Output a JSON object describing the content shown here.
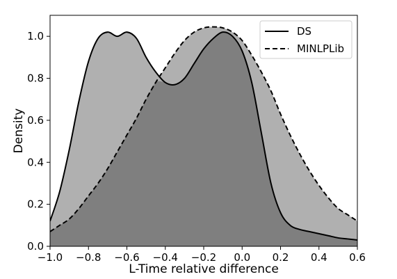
{
  "chart_data": {
    "type": "area",
    "xlabel": "L-Time relative difference",
    "ylabel": "Density",
    "xlim": [
      -1.0,
      0.6
    ],
    "ylim": [
      0.0,
      1.1
    ],
    "x_ticks": [
      "-1.0",
      "-0.8",
      "-0.6",
      "-0.4",
      "-0.2",
      "0.0",
      "0.2",
      "0.4",
      "0.6"
    ],
    "y_ticks": [
      "0.0",
      "0.2",
      "0.4",
      "0.6",
      "0.8",
      "1.0"
    ],
    "legend_position": "top-right",
    "grid": false,
    "x": [
      -1.0,
      -0.95,
      -0.9,
      -0.85,
      -0.8,
      -0.75,
      -0.7,
      -0.65,
      -0.6,
      -0.55,
      -0.5,
      -0.45,
      -0.4,
      -0.35,
      -0.3,
      -0.25,
      -0.2,
      -0.15,
      -0.1,
      -0.05,
      0.0,
      0.05,
      0.1,
      0.15,
      0.2,
      0.25,
      0.3,
      0.35,
      0.4,
      0.45,
      0.5,
      0.55,
      0.6
    ],
    "series": [
      {
        "name": "DS",
        "line_style": "solid",
        "fill_color": "#b0b0b0",
        "values": [
          0.12,
          0.26,
          0.46,
          0.69,
          0.88,
          0.99,
          1.02,
          1.0,
          1.02,
          0.99,
          0.9,
          0.83,
          0.78,
          0.77,
          0.8,
          0.87,
          0.94,
          0.99,
          1.02,
          1.0,
          0.93,
          0.78,
          0.54,
          0.3,
          0.16,
          0.1,
          0.08,
          0.07,
          0.06,
          0.05,
          0.04,
          0.035,
          0.03
        ]
      },
      {
        "name": "MINLPLib",
        "line_style": "dashed",
        "fill_color": "#b0b0b0",
        "values": [
          0.07,
          0.1,
          0.13,
          0.18,
          0.24,
          0.3,
          0.37,
          0.45,
          0.53,
          0.61,
          0.7,
          0.78,
          0.85,
          0.92,
          0.98,
          1.02,
          1.04,
          1.045,
          1.04,
          1.02,
          0.98,
          0.91,
          0.83,
          0.74,
          0.63,
          0.53,
          0.44,
          0.36,
          0.29,
          0.23,
          0.18,
          0.15,
          0.12
        ]
      }
    ],
    "overlap_fill_color": "#7f7f7f"
  }
}
